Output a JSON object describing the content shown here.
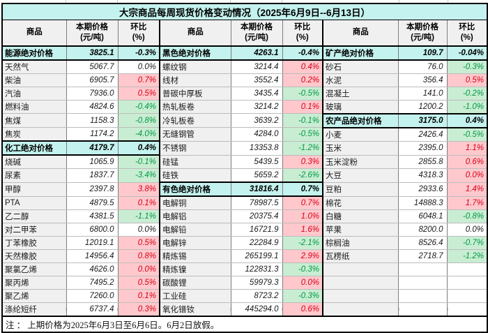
{
  "title": "大宗商品每周现货价格变动情况（2025年6月9日--6月13日）",
  "header": {
    "commodity": "商品",
    "price": "本期价格\n(元/吨)",
    "change": "环比\n(%)"
  },
  "footnote": "注 ： 上期价格为2025年6月3日至6月6日。6月2日放假。",
  "colors": {
    "title_bg": "#c4f2ee",
    "section_bg": "#c4f2ee",
    "header_bg": "#f0f0f0",
    "name_bg": "#f0f0f0",
    "up_bg": "#ffc8cc",
    "up_text": "#d80018",
    "down_bg": "#c9edd3",
    "down_text": "#009a44"
  },
  "groups": [
    {
      "rows": [
        {
          "name": "能源绝对价格",
          "price": "3825.1",
          "change": "-0.3%",
          "style": "section"
        },
        {
          "name": "天然气",
          "price": "5067.7",
          "change": "0.0%",
          "style": "flat"
        },
        {
          "name": "柴油",
          "price": "6905.7",
          "change": "0.7%",
          "style": "up"
        },
        {
          "name": "汽油",
          "price": "7936.0",
          "change": "0.5%",
          "style": "up"
        },
        {
          "name": "燃料油",
          "price": "4824.6",
          "change": "-0.4%",
          "style": "down"
        },
        {
          "name": "焦煤",
          "price": "1158.3",
          "change": "-0.8%",
          "style": "down"
        },
        {
          "name": "焦炭",
          "price": "1174.2",
          "change": "-4.0%",
          "style": "down"
        },
        {
          "name": "化工绝对价格",
          "price": "4179.7",
          "change": "0.4%",
          "style": "section"
        },
        {
          "name": "烧碱",
          "price": "1065.9",
          "change": "-0.1%",
          "style": "down"
        },
        {
          "name": "尿素",
          "price": "1837.7",
          "change": "-3.4%",
          "style": "down"
        },
        {
          "name": "甲醇",
          "price": "2397.8",
          "change": "3.8%",
          "style": "up"
        },
        {
          "name": "PTA",
          "price": "4879.5",
          "change": "0.1%",
          "style": "up"
        },
        {
          "name": "乙二醇",
          "price": "4381.5",
          "change": "-1.1%",
          "style": "down"
        },
        {
          "name": "对二甲苯",
          "price": "6800.0",
          "change": "0.0%",
          "style": "flat"
        },
        {
          "name": "丁苯橡胶",
          "price": "12019.1",
          "change": "0.5%",
          "style": "up"
        },
        {
          "name": "天然橡胶",
          "price": "14956.4",
          "change": "0.8%",
          "style": "up"
        },
        {
          "name": "聚氯乙烯",
          "price": "4626.0",
          "change": "0.0%",
          "style": "up"
        },
        {
          "name": "聚丙烯",
          "price": "7495.2",
          "change": "0.5%",
          "style": "up"
        },
        {
          "name": "聚乙烯",
          "price": "7260.0",
          "change": "0.1%",
          "style": "up"
        },
        {
          "name": "涤纶短纤",
          "price": "6737.4",
          "change": "0.3%",
          "style": "up"
        }
      ]
    },
    {
      "rows": [
        {
          "name": "黑色绝对价格",
          "price": "4263.1",
          "change": "-0.4%",
          "style": "section"
        },
        {
          "name": "螺纹钢",
          "price": "3214.4",
          "change": "0.4%",
          "style": "up"
        },
        {
          "name": "线材",
          "price": "3552.4",
          "change": "0.2%",
          "style": "up"
        },
        {
          "name": "普碳中厚板",
          "price": "3435.4",
          "change": "-0.5%",
          "style": "down"
        },
        {
          "name": "热轧板卷",
          "price": "3214.2",
          "change": "0.1%",
          "style": "up"
        },
        {
          "name": "冷轧板卷",
          "price": "3639.2",
          "change": "-0.1%",
          "style": "down"
        },
        {
          "name": "无缝钢管",
          "price": "4284.0",
          "change": "-0.5%",
          "style": "down"
        },
        {
          "name": "不锈钢",
          "price": "13353.8",
          "change": "-1.2%",
          "style": "down"
        },
        {
          "name": "硅锰",
          "price": "5439.5",
          "change": "0.3%",
          "style": "up"
        },
        {
          "name": "硅铁",
          "price": "5659.2",
          "change": "-2.6%",
          "style": "down"
        },
        {
          "name": "有色绝对价格",
          "price": "31816.4",
          "change": "0.7%",
          "style": "section"
        },
        {
          "name": "电解铜",
          "price": "78987.5",
          "change": "0.7%",
          "style": "up"
        },
        {
          "name": "电解铝",
          "price": "20375.4",
          "change": "1.0%",
          "style": "up"
        },
        {
          "name": "电解铅",
          "price": "16721.9",
          "change": "1.6%",
          "style": "up"
        },
        {
          "name": "电解锌",
          "price": "22284.9",
          "change": "-2.1%",
          "style": "down"
        },
        {
          "name": "精炼锡",
          "price": "265199.1",
          "change": "2.9%",
          "style": "up"
        },
        {
          "name": "精炼镍",
          "price": "122831.3",
          "change": "-0.3%",
          "style": "down"
        },
        {
          "name": "碳酸锂",
          "price": "59979.3",
          "change": "0.0%",
          "style": "up"
        },
        {
          "name": "工业硅",
          "price": "8723.2",
          "change": "-0.3%",
          "style": "down"
        },
        {
          "name": "氧化镨钕",
          "price": "445294.0",
          "change": "0.6%",
          "style": "up"
        }
      ]
    },
    {
      "rows": [
        {
          "name": "矿产绝对价格",
          "price": "109.7",
          "change": "-0.04%",
          "style": "section"
        },
        {
          "name": "砂石",
          "price": "76.0",
          "change": "-0.3%",
          "style": "down"
        },
        {
          "name": "水泥",
          "price": "356.4",
          "change": "0.5%",
          "style": "up"
        },
        {
          "name": "混凝土",
          "price": "141.0",
          "change": "-0.2%",
          "style": "down"
        },
        {
          "name": "玻璃",
          "price": "1200.2",
          "change": "-1.0%",
          "style": "down"
        },
        {
          "name": "农产品绝对价格",
          "price": "3175.0",
          "change": "0.4%",
          "style": "section"
        },
        {
          "name": "小麦",
          "price": "2426.4",
          "change": "-0.5%",
          "style": "down"
        },
        {
          "name": "玉米",
          "price": "2395.0",
          "change": "1.1%",
          "style": "up"
        },
        {
          "name": "玉米淀粉",
          "price": "2855.8",
          "change": "0.6%",
          "style": "up"
        },
        {
          "name": "大豆",
          "price": "4318.3",
          "change": "0.0%",
          "style": "up"
        },
        {
          "name": "豆粕",
          "price": "2933.6",
          "change": "1.4%",
          "style": "up"
        },
        {
          "name": "棉花",
          "price": "14888.3",
          "change": "1.7%",
          "style": "up"
        },
        {
          "name": "白糖",
          "price": "6048.1",
          "change": "-0.8%",
          "style": "down"
        },
        {
          "name": "苹果",
          "price": "8200.0",
          "change": "0.0%",
          "style": "flat"
        },
        {
          "name": "棕榈油",
          "price": "8526.4",
          "change": "-0.7%",
          "style": "down"
        },
        {
          "name": "瓦楞纸",
          "price": "2718.7",
          "change": "-1.2%",
          "style": "down"
        },
        {
          "name": "",
          "price": "",
          "change": "",
          "style": "empty"
        },
        {
          "name": "",
          "price": "",
          "change": "",
          "style": "empty"
        },
        {
          "name": "",
          "price": "",
          "change": "",
          "style": "empty"
        },
        {
          "name": "",
          "price": "",
          "change": "",
          "style": "empty"
        }
      ]
    }
  ]
}
